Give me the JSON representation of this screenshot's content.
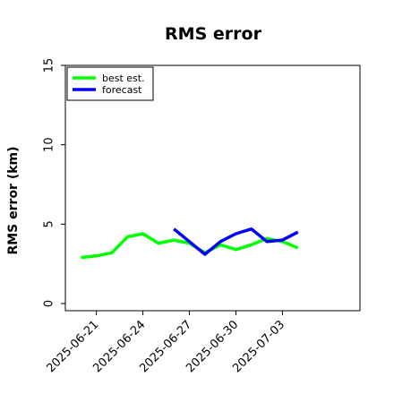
{
  "chart_data": {
    "type": "line",
    "title": "RMS error",
    "xlabel": "",
    "ylabel": "RMS error (km)",
    "ylim": [
      0,
      15
    ],
    "y_ticks": [
      0,
      5,
      10,
      15
    ],
    "x_ticks": [
      "2025-06-21",
      "2025-06-24",
      "2025-06-27",
      "2025-06-30",
      "2025-07-03"
    ],
    "xlim": [
      "2025-06-19",
      "2025-07-08"
    ],
    "grid": false,
    "legend": "top-left",
    "series": [
      {
        "name": "best est.",
        "color": "#00ff00",
        "x": [
          "2025-06-20",
          "2025-06-21",
          "2025-06-22",
          "2025-06-23",
          "2025-06-24",
          "2025-06-25",
          "2025-06-26",
          "2025-06-27",
          "2025-06-28",
          "2025-06-29",
          "2025-06-30",
          "2025-07-01",
          "2025-07-02",
          "2025-07-03",
          "2025-07-04"
        ],
        "values": [
          2.9,
          3.0,
          3.2,
          4.2,
          4.4,
          3.8,
          4.0,
          3.8,
          3.2,
          3.7,
          3.4,
          3.7,
          4.1,
          3.9,
          3.5
        ]
      },
      {
        "name": "forecast",
        "color": "#0000ff",
        "x": [
          "2025-06-26",
          "2025-06-27",
          "2025-06-28",
          "2025-06-29",
          "2025-06-30",
          "2025-07-01",
          "2025-07-02",
          "2025-07-03",
          "2025-07-04"
        ],
        "values": [
          4.7,
          3.9,
          3.1,
          3.9,
          4.4,
          4.7,
          3.9,
          4.0,
          4.5
        ]
      }
    ]
  }
}
